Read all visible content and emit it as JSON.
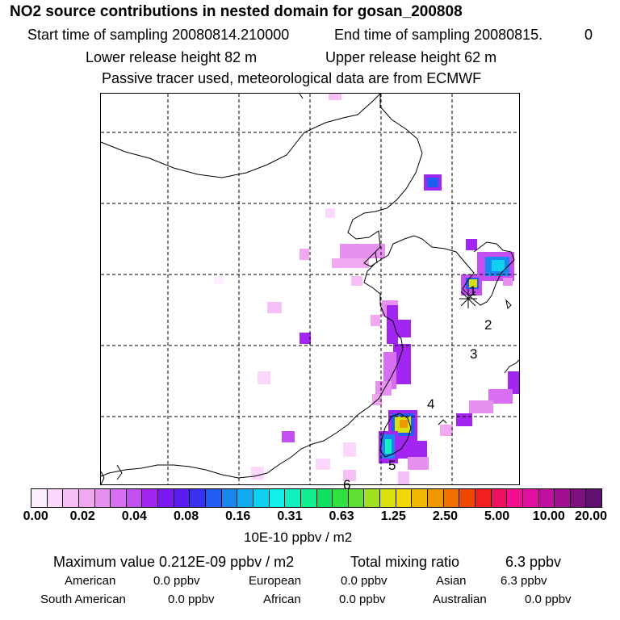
{
  "header": {
    "title": "NO2 source contributions in nested domain for gosan_200808",
    "start_label": "Start time of sampling 20080814.210000",
    "end_label": "End time of sampling 20080815.",
    "end_value": "0",
    "lower_release": "Lower release height   82 m",
    "upper_release": "Upper release height   62 m",
    "tracer_note": "Passive tracer used, meteorological data are from ECMWF"
  },
  "map": {
    "station_marker": "gosan-station",
    "labels": [
      "1",
      "2",
      "3",
      "4",
      "5",
      "6"
    ]
  },
  "colorbar": {
    "colors": [
      "#fdeefd",
      "#fbd8fb",
      "#f6c0f6",
      "#f1a8f1",
      "#e690f0",
      "#d86ff0",
      "#c44ff0",
      "#a326f0",
      "#7b1af0",
      "#5a1cf0",
      "#3a30f0",
      "#1f5ef0",
      "#1a86f0",
      "#12aaf0",
      "#10d0f0",
      "#10f0e8",
      "#10f0c0",
      "#10f090",
      "#10e060",
      "#30e040",
      "#60e030",
      "#a0e020",
      "#d8e010",
      "#f0d800",
      "#f0b800",
      "#f09800",
      "#f07000",
      "#f04800",
      "#f02020",
      "#f01060",
      "#f01090",
      "#e010a0",
      "#c010a0",
      "#a01090",
      "#801080",
      "#601070"
    ],
    "ticks": [
      "0.00",
      "0.02",
      "0.04",
      "0.08",
      "0.16",
      "0.31",
      "0.63",
      "1.25",
      "2.50",
      "5.00",
      "10.00",
      "20.00"
    ],
    "units": "10E-10 ppbv / m2"
  },
  "summary": {
    "max_label": "Maximum value  0.212E-09 ppbv / m2",
    "total_label": "Total mixing ratio",
    "total_value": "6.3 ppbv",
    "regions": [
      {
        "name": "American",
        "value": "0.0 ppbv"
      },
      {
        "name": "European",
        "value": "0.0 ppbv"
      },
      {
        "name": "Asian",
        "value": "6.3 ppbv"
      },
      {
        "name": "South American",
        "value": "0.0 ppbv"
      },
      {
        "name": "African",
        "value": "0.0 ppbv"
      },
      {
        "name": "Australian",
        "value": "0.0 ppbv"
      }
    ]
  }
}
